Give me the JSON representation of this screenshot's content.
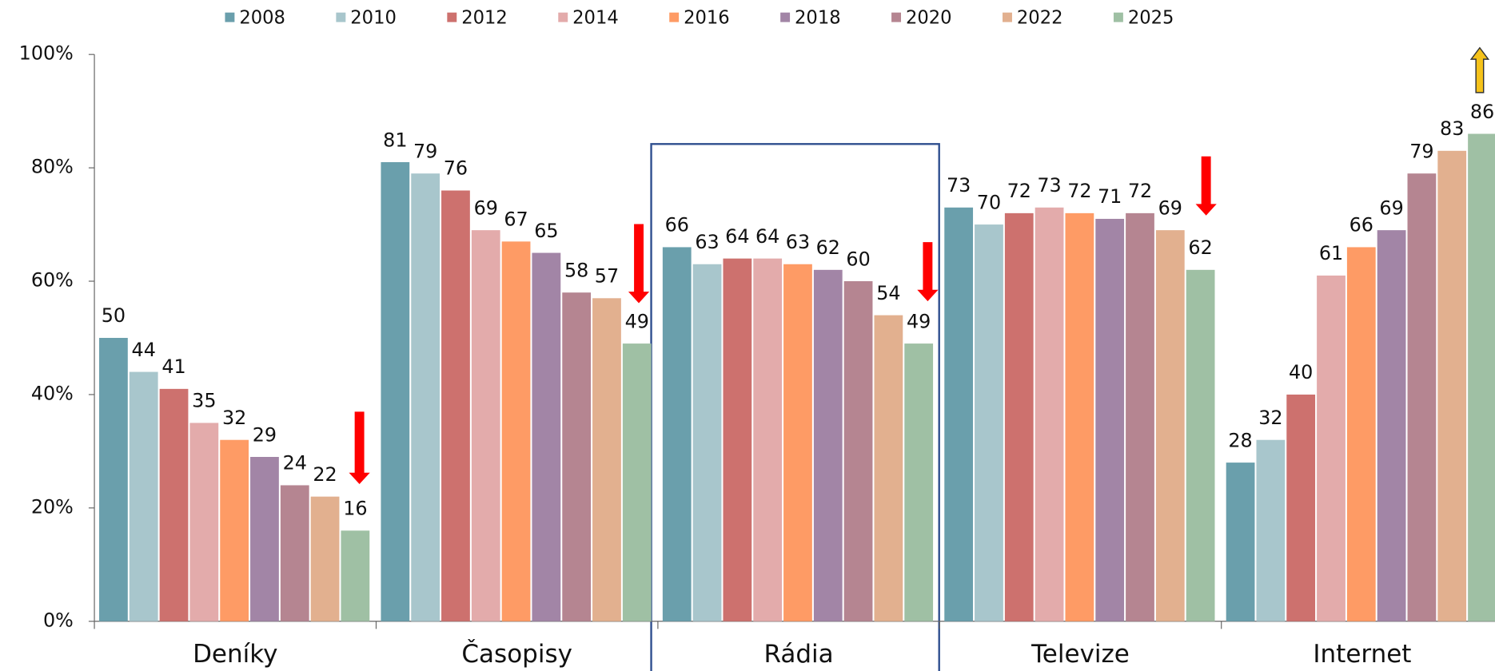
{
  "chart_data": {
    "type": "bar",
    "categories": [
      "Deníky",
      "Časopisy",
      "Rádia",
      "Televize",
      "Internet"
    ],
    "series": [
      {
        "name": "2008",
        "color": "#6a9fac",
        "values": [
          50,
          81,
          66,
          73,
          28
        ]
      },
      {
        "name": "2010",
        "color": "#a8c6cc",
        "values": [
          44,
          79,
          63,
          70,
          32
        ]
      },
      {
        "name": "2012",
        "color": "#cd716e",
        "values": [
          41,
          76,
          64,
          72,
          40
        ]
      },
      {
        "name": "2014",
        "color": "#e3abab",
        "values": [
          35,
          69,
          64,
          73,
          61
        ]
      },
      {
        "name": "2016",
        "color": "#fe9b65",
        "values": [
          32,
          67,
          63,
          72,
          66
        ]
      },
      {
        "name": "2018",
        "color": "#a285a6",
        "values": [
          29,
          65,
          62,
          71,
          69
        ]
      },
      {
        "name": "2020",
        "color": "#b58591",
        "values": [
          24,
          58,
          60,
          72,
          79
        ]
      },
      {
        "name": "2022",
        "color": "#e2b08f",
        "values": [
          22,
          57,
          54,
          69,
          83
        ]
      },
      {
        "name": "2025",
        "color": "#9fc0a4",
        "values": [
          16,
          49,
          49,
          62,
          86
        ]
      }
    ],
    "ylim": [
      0,
      100
    ],
    "yticks": [
      {
        "value": 0,
        "label": "0%"
      },
      {
        "value": 20,
        "label": "20%"
      },
      {
        "value": 40,
        "label": "40%"
      },
      {
        "value": 60,
        "label": "60%"
      },
      {
        "value": 80,
        "label": "80%"
      },
      {
        "value": 100,
        "label": "100%"
      }
    ],
    "legend": "top"
  }
}
